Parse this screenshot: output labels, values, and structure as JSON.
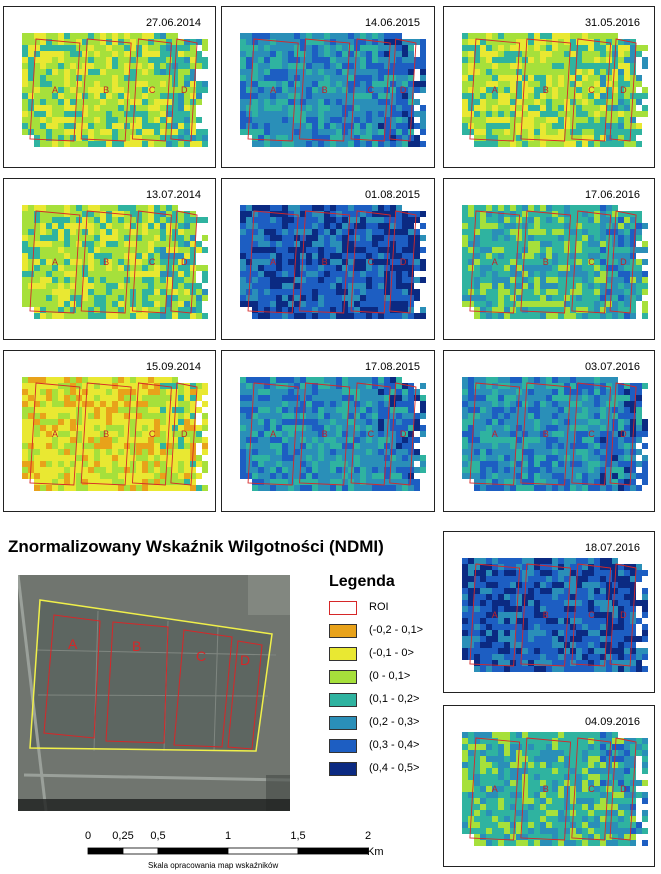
{
  "title": "Znormalizowany Wskaźnik Wilgotności (NDMI)",
  "panels": [
    {
      "date": "27.06.2014",
      "dominant": 2
    },
    {
      "date": "14.06.2015",
      "dominant": 4
    },
    {
      "date": "31.05.2016",
      "dominant": 2
    },
    {
      "date": "13.07.2014",
      "dominant": 2
    },
    {
      "date": "01.08.2015",
      "dominant": 5
    },
    {
      "date": "17.06.2016",
      "dominant": 3
    },
    {
      "date": "15.09.2014",
      "dominant": 1
    },
    {
      "date": "17.08.2015",
      "dominant": 4
    },
    {
      "date": "03.07.2016",
      "dominant": 4
    },
    {
      "date": "18.07.2016",
      "dominant": 5
    },
    {
      "date": "04.09.2016",
      "dominant": 3
    }
  ],
  "roi_labels": [
    "A",
    "B",
    "C",
    "D"
  ],
  "legend": {
    "title": "Legenda",
    "items": [
      {
        "label": "ROI",
        "color": "#ffffff",
        "border": "#d62728"
      },
      {
        "label": "(-0,2 - 0,1>",
        "color": "#e8a21a"
      },
      {
        "label": "(-0,1 - 0>",
        "color": "#e9e832"
      },
      {
        "label": "(0 - 0,1>",
        "color": "#a6e03b"
      },
      {
        "label": "(0,1 - 0,2>",
        "color": "#2fb3a0"
      },
      {
        "label": "(0,2 - 0,3>",
        "color": "#2a8fb8"
      },
      {
        "label": "(0,3 - 0,4>",
        "color": "#1d5ec2"
      },
      {
        "label": "(0,4 - 0,5>",
        "color": "#0b2a82"
      }
    ]
  },
  "scale": {
    "ticks": [
      "0",
      "0,25",
      "0,5",
      "1",
      "1,5",
      "2"
    ],
    "tick_values": [
      0,
      0.25,
      0.5,
      1,
      1.5,
      2
    ],
    "unit": "Km",
    "caption": "Skala opracowania map wskaźników"
  },
  "satellite": {
    "labels": [
      "A",
      "B",
      "C",
      "D"
    ],
    "roi_color": "#d62728",
    "boundary_color": "#f0f04a",
    "ground_color": "#6e7470"
  }
}
